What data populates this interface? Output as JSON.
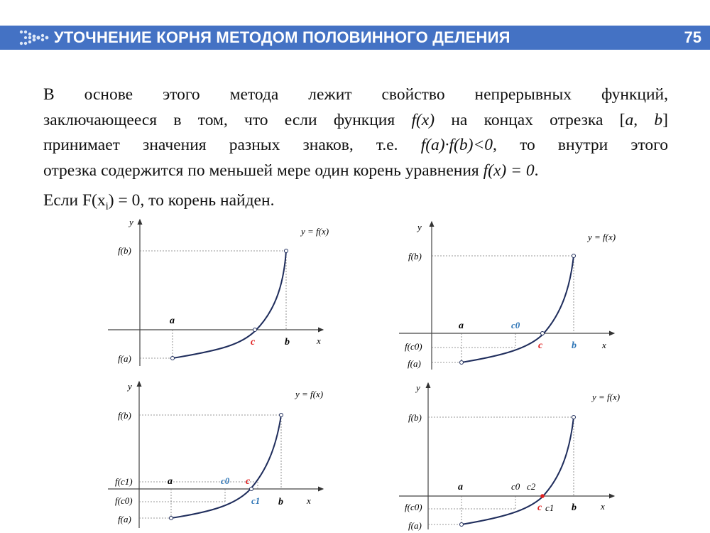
{
  "header": {
    "title": "УТОЧНЕНИЕ КОРНЯ МЕТОДОМ ПОЛОВИННОГО ДЕЛЕНИЯ",
    "slide_number": "75"
  },
  "colors": {
    "header_bg": "#4472c4",
    "curve": "#1f2d5c",
    "red_label": "#e02020",
    "blue_label": "#2e75b6"
  },
  "paragraph": {
    "l1": "В основе этого метода лежит свойство непрерывных функций,",
    "l2a": "заключающееся в том, что если функция ",
    "fx": "f(x)",
    "l2b": " на концах отрезка [",
    "a": "a",
    "comma": ", ",
    "b": "b",
    "close": "]",
    "l3a": "принимает значения разных знаков, т.е. ",
    "prod": "f(a)·f(b)<0",
    "l3b": ", то внутри этого",
    "l4a": "отрезка содержится по меньшей мере один корень уравнения ",
    "eq": "f(x) = 0",
    "dot": "."
  },
  "line2": {
    "pre": "Если F(x",
    "sub": "i",
    "post": ") = 0, то корень найден."
  },
  "graphs": {
    "g1": {
      "y": "y",
      "x": "x",
      "func": "y = f(x)",
      "fb": "f(b)",
      "fa": "f(a)",
      "a": "a",
      "c": "c",
      "b": "b"
    },
    "g2": {
      "y": "y",
      "x": "x",
      "func": "y = f(x)",
      "fb": "f(b)",
      "fc0": "f(c0)",
      "fa": "f(a)",
      "a": "a",
      "c0": "c0",
      "c": "c",
      "b": "b"
    },
    "g3": {
      "y": "y",
      "x": "x",
      "func": "y = f(x)",
      "fb": "f(b)",
      "fc1": "f(c1)",
      "fc0": "f(c0)",
      "fa": "f(a)",
      "a": "a",
      "c0": "c0",
      "c": "c",
      "c1": "c1",
      "b": "b"
    },
    "g4": {
      "y": "y",
      "x": "x",
      "func": "y = f(x)",
      "fb": "f(b)",
      "fc0": "f(c0)",
      "fa": "f(a)",
      "a": "a",
      "c0": "c0",
      "c2": "c2",
      "c": "c",
      "c1": "c1",
      "b": "b"
    }
  }
}
